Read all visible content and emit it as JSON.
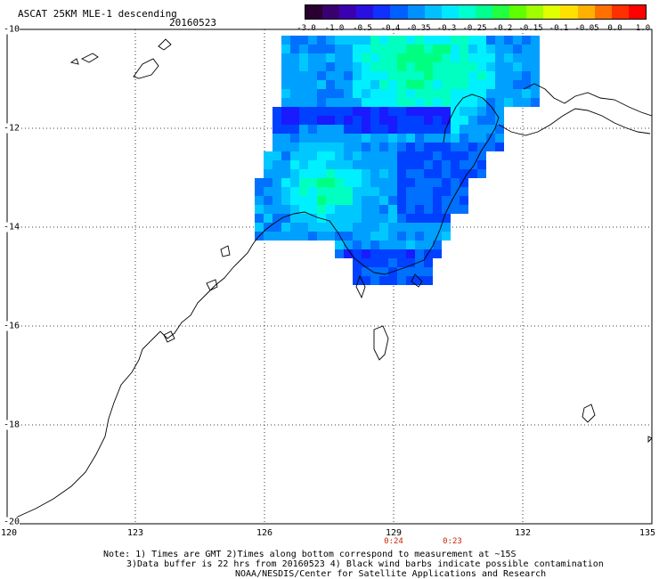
{
  "header": {
    "title": "ASCAT 25KM MLE-1 descending",
    "date": "20160523"
  },
  "colorbar": {
    "labels": [
      "-3.0",
      "-1.0",
      "-0.5",
      "-0.4",
      "-0.35",
      "-0.3",
      "-0.25",
      "-0.2",
      "-0.15",
      "-0.1",
      "-0.05",
      "0.0",
      "1.0"
    ],
    "colors": [
      "#2a0030",
      "#3a0070",
      "#3b00b0",
      "#2a10e0",
      "#1030ff",
      "#0060ff",
      "#0090ff",
      "#00c0ff",
      "#00e8ff",
      "#00ffd0",
      "#00ff90",
      "#20ff40",
      "#60ff00",
      "#a0ff00",
      "#e0ff00",
      "#ffe000",
      "#ffb000",
      "#ff7000",
      "#ff3000",
      "#ff0000"
    ]
  },
  "axes": {
    "x_ticks": [
      "120",
      "123",
      "126",
      "129",
      "132",
      "135"
    ],
    "y_ticks": [
      "-10",
      "-12",
      "-14",
      "-16",
      "-18",
      "-20"
    ]
  },
  "times": [
    "0:24",
    "0:23"
  ],
  "notes": {
    "line1": "Note: 1) Times are GMT 2)Times along bottom correspond to measurement at ~15S",
    "line2": "3)Data buffer is 22 hrs from 20160523 4) Black wind barbs indicate possible contamination",
    "line3": "NOAA/NESDIS/Center for Satellite Applications and Research"
  }
}
